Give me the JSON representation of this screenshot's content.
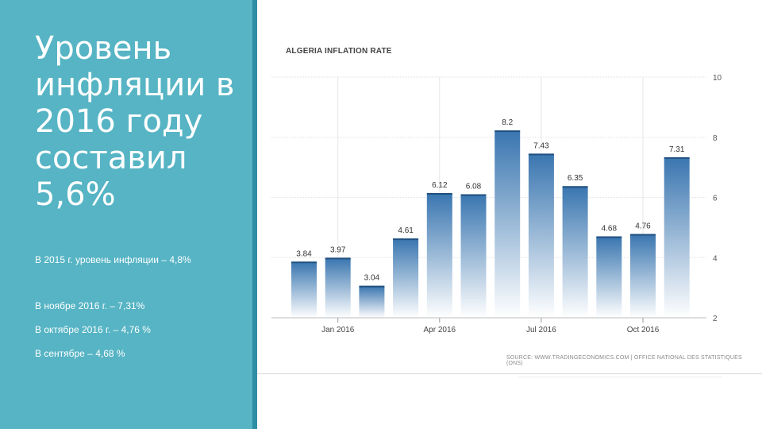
{
  "slide": {
    "title": "Уровень инфляции в 2016 году составил 5,6%",
    "notes": [
      "В 2015 г. уровень инфляции – 4,8%",
      "В ноябре 2016 г. – 7,31%",
      "В октябре 2016 г. – 4,76 %",
      "В сентябре – 4,68 %"
    ]
  },
  "chart_data": {
    "type": "bar",
    "title": "ALGERIA INFLATION RATE",
    "source": "SOURCE: WWW.TRADINGECONOMICS.COM | OFFICE NATIONAL DES STATISTIQUES (ONS)",
    "values": [
      3.84,
      3.97,
      3.04,
      4.61,
      6.12,
      6.08,
      8.2,
      7.43,
      6.35,
      4.68,
      4.76,
      7.31
    ],
    "data_labels": [
      "3.84",
      "3.97",
      "3.04",
      "4.61",
      "6.12",
      "6.08",
      "8.2",
      "7.43",
      "6.35",
      "4.68",
      "4.76",
      "7.31"
    ],
    "x_tick_labels": [
      {
        "index": 1,
        "label": "Jan 2016"
      },
      {
        "index": 4,
        "label": "Apr 2016"
      },
      {
        "index": 7,
        "label": "Jul 2016"
      },
      {
        "index": 10,
        "label": "Oct 2016"
      }
    ],
    "y_ticks": [
      2,
      4,
      6,
      8,
      10
    ],
    "ylim": [
      2,
      10
    ],
    "grid": true,
    "y_axis_side": "right",
    "bar_color_top": "#3a76b0",
    "bar_color_bottom": "#ffffff"
  }
}
